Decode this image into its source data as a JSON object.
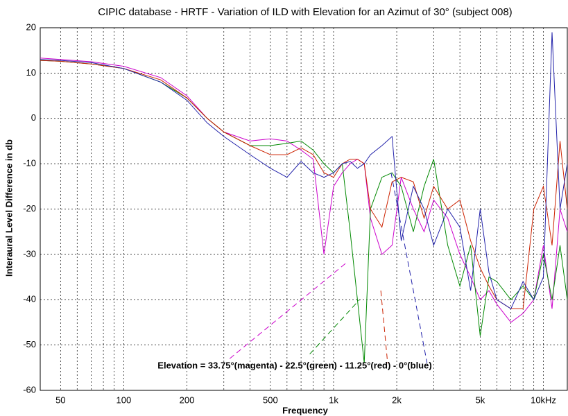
{
  "chart_data": {
    "type": "line",
    "title": "CIPIC database - HRTF - Variation of ILD with Elevation for an Azimut of 30° (subject 008)",
    "xlabel": "Frequency",
    "ylabel": "Interaural Level Difference in db",
    "annotation": "Elevation = 33.75°(magenta) - 22.5°(green) - 11.25°(red) - 0°(blue)",
    "xscale": "log",
    "grid": true,
    "xlim": [
      40,
      13000
    ],
    "ylim": [
      -60,
      20
    ],
    "xticks": [
      50,
      100,
      200,
      500,
      {
        "value": 1000,
        "label": "1k"
      },
      {
        "value": 2000,
        "label": "2k"
      },
      {
        "value": 5000,
        "label": "5k"
      },
      {
        "value": 10000,
        "label": "10kHz"
      }
    ],
    "xminor_ticks": [
      40,
      60,
      70,
      80,
      90,
      300,
      400,
      600,
      700,
      800,
      900,
      3000,
      4000,
      6000,
      7000,
      8000,
      9000
    ],
    "yticks": [
      -60,
      -50,
      -40,
      -30,
      -20,
      -10,
      0,
      10,
      20
    ],
    "x": [
      40,
      50,
      70,
      100,
      150,
      200,
      250,
      300,
      400,
      500,
      600,
      700,
      800,
      900,
      1000,
      1100,
      1200,
      1300,
      1400,
      1500,
      1700,
      1900,
      2100,
      2400,
      2700,
      3000,
      3500,
      4000,
      4500,
      5000,
      5500,
      6000,
      7000,
      8000,
      9000,
      10000,
      11000,
      12000,
      13000
    ],
    "series": [
      {
        "color": "#cc00cc",
        "values": [
          13.3,
          13,
          12.5,
          11.5,
          9,
          5,
          0,
          -3,
          -5,
          -4.5,
          -5,
          -7,
          -9,
          -30,
          -15,
          -12,
          -10,
          -9,
          -10,
          -22,
          -30,
          -28,
          -13,
          -20,
          -25,
          -18,
          -22,
          -30,
          -35,
          -40,
          -38,
          -41,
          -45,
          -43,
          -40,
          -28,
          -42,
          -20,
          -25
        ]
      },
      {
        "color": "#008800",
        "values": [
          12.8,
          12.6,
          12,
          11,
          8,
          4.5,
          0,
          -3,
          -6,
          -6,
          -5.5,
          -5,
          -7,
          -10,
          -12,
          -10,
          -25,
          -40,
          -54,
          -20,
          -13,
          -12,
          -15,
          -25,
          -15,
          -9,
          -28,
          -37,
          -28,
          -48,
          -35,
          -36,
          -40,
          -37,
          -40,
          -30,
          -40,
          -28,
          -40
        ]
      },
      {
        "color": "#cc2200",
        "values": [
          12.8,
          12.6,
          12,
          11,
          8.5,
          4.5,
          0,
          -3,
          -6,
          -8,
          -8,
          -6.5,
          -8,
          -12,
          -13,
          -10,
          -9,
          -9,
          -10,
          -20,
          -24,
          -14,
          -13,
          -14,
          -22,
          -15,
          -20,
          -18,
          -27,
          -33,
          -37,
          -40,
          -42,
          -42,
          -20,
          -15,
          -28,
          -5,
          -20
        ]
      },
      {
        "color": "#2222aa",
        "values": [
          13,
          12.8,
          12.3,
          11,
          8,
          4,
          -1,
          -4,
          -8,
          -11,
          -13,
          -9.5,
          -12,
          -13,
          -12,
          -10,
          -9.5,
          -11,
          -10,
          -8,
          -6,
          -4,
          -27,
          -15,
          -20,
          -28,
          -20,
          -24,
          -38,
          -20,
          -34,
          -40,
          -42,
          -36,
          -40,
          -35,
          19,
          -20,
          -10
        ]
      },
      {
        "color": "#cc00cc",
        "dashed": true,
        "x": [
          320,
          1140
        ],
        "values": [
          -53,
          -32
        ]
      },
      {
        "color": "#008800",
        "dashed": true,
        "x": [
          770,
          1330
        ],
        "values": [
          -52,
          -40
        ]
      },
      {
        "color": "#cc2200",
        "dashed": true,
        "x": [
          1680,
          1810
        ],
        "values": [
          -38,
          -54
        ]
      },
      {
        "color": "#2222aa",
        "dashed": true,
        "x": [
          1880,
          2790
        ],
        "values": [
          -12,
          -54
        ]
      }
    ]
  }
}
